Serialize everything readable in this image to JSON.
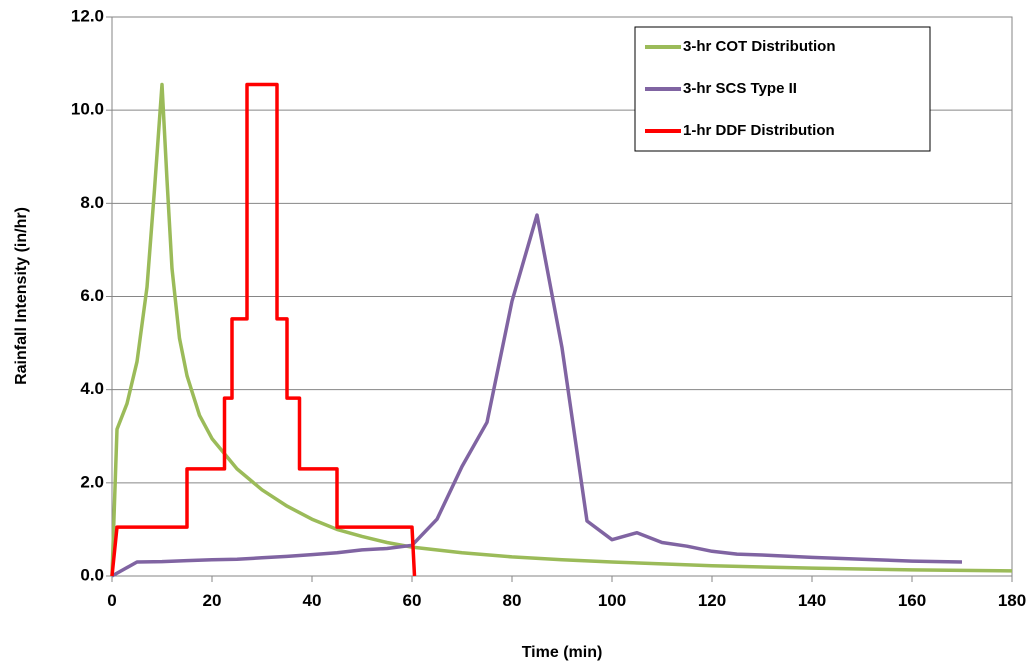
{
  "chart_data": {
    "type": "line",
    "title": "",
    "xlabel": "Time (min)",
    "ylabel": "Rainfall Intensity (in/hr)",
    "xlim": [
      0,
      180
    ],
    "ylim": [
      0,
      12
    ],
    "x_ticks": [
      0,
      20,
      40,
      60,
      80,
      100,
      120,
      140,
      160,
      180
    ],
    "x_tick_labels": [
      "0",
      "20",
      "40",
      "60",
      "80",
      "100",
      "120",
      "140",
      "160",
      "180"
    ],
    "y_ticks": [
      0,
      2,
      4,
      6,
      8,
      10,
      12
    ],
    "y_tick_labels": [
      "0.0",
      "2.0",
      "4.0",
      "6.0",
      "8.0",
      "10.0",
      "12.0"
    ],
    "grid": "horizontal",
    "legend_position": "top-right",
    "series": [
      {
        "name": "3-hr COT Distribution",
        "color": "#9BBB59",
        "points": [
          [
            0,
            0
          ],
          [
            1,
            3.15
          ],
          [
            3,
            3.7
          ],
          [
            5,
            4.6
          ],
          [
            7,
            6.2
          ],
          [
            8.5,
            8.3
          ],
          [
            10,
            10.55
          ],
          [
            11,
            8.5
          ],
          [
            12,
            6.6
          ],
          [
            13.5,
            5.1
          ],
          [
            15,
            4.3
          ],
          [
            17.5,
            3.45
          ],
          [
            20,
            2.95
          ],
          [
            25,
            2.3
          ],
          [
            30,
            1.85
          ],
          [
            35,
            1.5
          ],
          [
            40,
            1.22
          ],
          [
            45,
            1.0
          ],
          [
            50,
            0.85
          ],
          [
            55,
            0.72
          ],
          [
            60,
            0.62
          ],
          [
            70,
            0.5
          ],
          [
            80,
            0.41
          ],
          [
            90,
            0.35
          ],
          [
            100,
            0.3
          ],
          [
            110,
            0.26
          ],
          [
            120,
            0.22
          ],
          [
            140,
            0.17
          ],
          [
            160,
            0.13
          ],
          [
            180,
            0.11
          ]
        ]
      },
      {
        "name": "3-hr SCS Type II",
        "color": "#8064A2",
        "points": [
          [
            0,
            0
          ],
          [
            5,
            0.3
          ],
          [
            10,
            0.31
          ],
          [
            15,
            0.33
          ],
          [
            20,
            0.35
          ],
          [
            25,
            0.36
          ],
          [
            30,
            0.39
          ],
          [
            35,
            0.42
          ],
          [
            40,
            0.46
          ],
          [
            45,
            0.5
          ],
          [
            50,
            0.56
          ],
          [
            55,
            0.59
          ],
          [
            60,
            0.66
          ],
          [
            65,
            1.22
          ],
          [
            70,
            2.35
          ],
          [
            75,
            3.3
          ],
          [
            80,
            5.9
          ],
          [
            85,
            7.75
          ],
          [
            90,
            4.9
          ],
          [
            95,
            1.18
          ],
          [
            100,
            0.78
          ],
          [
            105,
            0.93
          ],
          [
            110,
            0.72
          ],
          [
            115,
            0.64
          ],
          [
            120,
            0.53
          ],
          [
            125,
            0.47
          ],
          [
            130,
            0.45
          ],
          [
            140,
            0.4
          ],
          [
            150,
            0.36
          ],
          [
            160,
            0.32
          ],
          [
            170,
            0.3
          ]
        ]
      },
      {
        "name": "1-hr DDF Distribution",
        "color": "#FF0000",
        "points": [
          [
            0,
            0
          ],
          [
            1,
            1.05
          ],
          [
            15,
            1.05
          ],
          [
            15,
            2.3
          ],
          [
            22.5,
            2.3
          ],
          [
            22.5,
            3.82
          ],
          [
            24,
            3.82
          ],
          [
            24,
            5.52
          ],
          [
            27,
            5.52
          ],
          [
            27,
            10.55
          ],
          [
            33,
            10.55
          ],
          [
            33,
            5.52
          ],
          [
            35,
            5.52
          ],
          [
            35,
            3.82
          ],
          [
            37.5,
            3.82
          ],
          [
            37.5,
            2.3
          ],
          [
            45,
            2.3
          ],
          [
            45,
            1.05
          ],
          [
            60,
            1.05
          ],
          [
            60.5,
            0
          ]
        ]
      }
    ]
  }
}
